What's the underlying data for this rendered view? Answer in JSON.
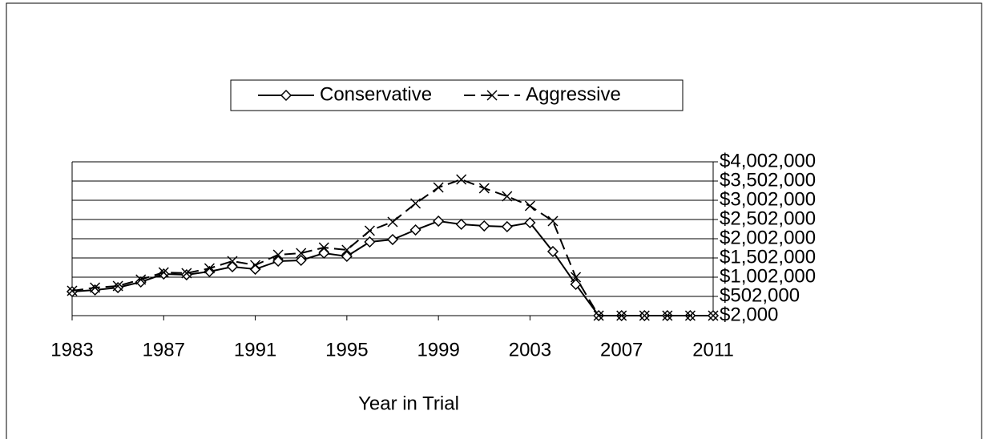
{
  "chart_data": {
    "type": "line",
    "x_label": "Year in Trial",
    "x": [
      1983,
      1984,
      1985,
      1986,
      1987,
      1988,
      1989,
      1990,
      1991,
      1992,
      1993,
      1994,
      1995,
      1996,
      1997,
      1998,
      1999,
      2000,
      2001,
      2002,
      2003,
      2004,
      2005,
      2006,
      2007,
      2008,
      2009,
      2010,
      2011
    ],
    "series": [
      {
        "name": "Conservative",
        "color": "#000000",
        "marker": "diamond",
        "line_style": "solid",
        "values": [
          627000,
          669000,
          731000,
          877000,
          1085000,
          1064000,
          1148000,
          1273000,
          1210000,
          1419000,
          1440000,
          1627000,
          1544000,
          1919000,
          1981000,
          2231000,
          2460000,
          2377000,
          2335000,
          2315000,
          2419000,
          1669000,
          815000,
          2000,
          2000,
          2000,
          2000,
          2000,
          2000
        ]
      },
      {
        "name": "Aggressive",
        "color": "#000000",
        "marker": "x",
        "line_style": "dashed",
        "values": [
          648000,
          731000,
          773000,
          940000,
          1127000,
          1106000,
          1231000,
          1419000,
          1315000,
          1585000,
          1627000,
          1773000,
          1710000,
          2210000,
          2440000,
          2919000,
          3335000,
          3544000,
          3315000,
          3106000,
          2856000,
          2460000,
          1002000,
          2000,
          2000,
          2000,
          2000,
          2000,
          2000
        ]
      }
    ],
    "xlim": [
      1983,
      2011
    ],
    "xticks": [
      1983,
      1987,
      1991,
      1995,
      1999,
      2003,
      2007,
      2011
    ],
    "ylim": [
      2000,
      4002000
    ],
    "yticks": [
      {
        "value": 2000,
        "label": "$2,000"
      },
      {
        "value": 502000,
        "label": "$502,000"
      },
      {
        "value": 1002000,
        "label": "$1,002,000"
      },
      {
        "value": 1502000,
        "label": "$1,502,000"
      },
      {
        "value": 2002000,
        "label": "$2,002,000"
      },
      {
        "value": 2502000,
        "label": "$2,502,000"
      },
      {
        "value": 3002000,
        "label": "$3,002,000"
      },
      {
        "value": 3502000,
        "label": "$3,502,000"
      },
      {
        "value": 4002000,
        "label": "$4,002,000"
      }
    ],
    "y_axis_side": "right",
    "grid": true,
    "legend": "top"
  }
}
